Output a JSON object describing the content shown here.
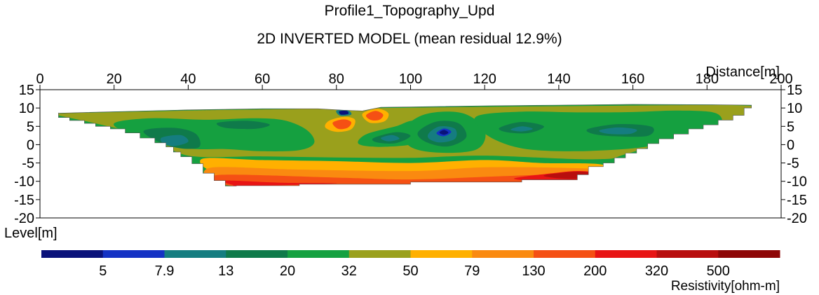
{
  "chart_data": {
    "type": "heatmap",
    "title": "Profile1_Topography_Upd",
    "subtitle": "2D INVERTED MODEL (mean residual 12.9%)",
    "xlabel": "Distance[m]",
    "ylabel": "Level[m]",
    "colorbar_label": "Resistivity[ohm-m]",
    "xlim": [
      0,
      200
    ],
    "ylim": [
      -20,
      15
    ],
    "x_ticks": [
      "0",
      "20",
      "40",
      "60",
      "80",
      "100",
      "120",
      "140",
      "160",
      "180",
      "200"
    ],
    "y_ticks": [
      "15",
      "10",
      "5",
      "0",
      "-5",
      "-10",
      "-15",
      "-20"
    ],
    "colorbar_ticks": [
      "5",
      "7.9",
      "13",
      "20",
      "32",
      "50",
      "79",
      "130",
      "200",
      "320",
      "500"
    ],
    "colorbar_colors": [
      "#0a127a",
      "#1432c4",
      "#157d80",
      "#0f7a4a",
      "#15a040",
      "#9aa01c",
      "#ffb000",
      "#fa8a10",
      "#f55014",
      "#e81414",
      "#b80e0e",
      "#8e0606"
    ],
    "scale": "log",
    "section_top": [
      [
        5,
        8.6
      ],
      [
        20,
        9.0
      ],
      [
        40,
        9.5
      ],
      [
        60,
        9.8
      ],
      [
        75,
        9.8
      ],
      [
        82,
        9.4
      ],
      [
        87,
        9.2
      ],
      [
        92,
        10.2
      ],
      [
        100,
        10.3
      ],
      [
        120,
        10.6
      ],
      [
        140,
        10.8
      ],
      [
        160,
        11.0
      ],
      [
        180,
        10.9
      ],
      [
        192,
        10.8
      ]
    ],
    "section_bottom": [
      [
        5,
        8.0
      ],
      [
        8,
        7.4
      ],
      [
        12,
        6.6
      ],
      [
        15,
        5.8
      ],
      [
        19,
        5.0
      ],
      [
        23,
        4.3
      ],
      [
        27,
        3.2
      ],
      [
        31,
        1.8
      ],
      [
        34,
        0.5
      ],
      [
        36,
        -0.6
      ],
      [
        38,
        -2.0
      ],
      [
        41,
        -3.3
      ],
      [
        44,
        -5.2
      ],
      [
        47,
        -7.8
      ],
      [
        50,
        -9.8
      ],
      [
        53,
        -11.3
      ],
      [
        70,
        -11.2
      ],
      [
        100,
        -10.8
      ],
      [
        130,
        -10.2
      ],
      [
        145,
        -9.6
      ],
      [
        148,
        -8.2
      ],
      [
        152,
        -6.0
      ],
      [
        155,
        -5.0
      ],
      [
        158,
        -3.6
      ],
      [
        161,
        -2.3
      ],
      [
        164,
        -1.1
      ],
      [
        167,
        0.3
      ],
      [
        171,
        1.6
      ],
      [
        175,
        2.9
      ],
      [
        179,
        4.3
      ],
      [
        183,
        5.4
      ],
      [
        187,
        6.7
      ],
      [
        190,
        8.0
      ],
      [
        192,
        10.0
      ]
    ],
    "regions": [
      {
        "class": 5,
        "resistivity": "50-79",
        "pts": [
          [
            5,
            8.5
          ],
          [
            40,
            9.3
          ],
          [
            60,
            9.6
          ],
          [
            140,
            10.5
          ],
          [
            192,
            10.6
          ],
          [
            192,
            8.0
          ],
          [
            160,
            -2.0
          ],
          [
            150,
            -4.0
          ],
          [
            120,
            -3.0
          ],
          [
            100,
            -3.6
          ],
          [
            80,
            -3.5
          ],
          [
            60,
            -3.2
          ],
          [
            40,
            -3.0
          ],
          [
            30,
            2.0
          ],
          [
            15,
            5.8
          ],
          [
            5,
            8.0
          ]
        ]
      },
      {
        "class": 6,
        "resistivity": "79-130",
        "pts": [
          [
            44,
            -3.8
          ],
          [
            60,
            -4.2
          ],
          [
            80,
            -4.5
          ],
          [
            100,
            -5.0
          ],
          [
            120,
            -4.2
          ],
          [
            135,
            -5.0
          ],
          [
            152,
            -5.5
          ],
          [
            150,
            -9.0
          ],
          [
            140,
            -8.0
          ],
          [
            100,
            -8.3
          ],
          [
            60,
            -8.2
          ],
          [
            47,
            -7.5
          ]
        ]
      },
      {
        "class": 7,
        "resistivity": "130-200",
        "pts": [
          [
            46,
            -6.3
          ],
          [
            70,
            -6.8
          ],
          [
            100,
            -7.2
          ],
          [
            120,
            -6.2
          ],
          [
            140,
            -6.3
          ],
          [
            152,
            -7.0
          ],
          [
            148,
            -9.5
          ],
          [
            100,
            -10.0
          ],
          [
            52,
            -10.2
          ]
        ]
      },
      {
        "class": 8,
        "resistivity": "200-320",
        "pts": [
          [
            48,
            -8.3
          ],
          [
            80,
            -9.0
          ],
          [
            100,
            -9.5
          ],
          [
            125,
            -8.6
          ],
          [
            145,
            -8.0
          ],
          [
            147,
            -9.6
          ],
          [
            130,
            -10.4
          ],
          [
            100,
            -11.0
          ],
          [
            53,
            -11.3
          ]
        ]
      },
      {
        "class": 9,
        "resistivity": "320-500",
        "pts": [
          [
            50,
            -9.8
          ],
          [
            65,
            -10.4
          ],
          [
            80,
            -10.6
          ],
          [
            55,
            -11.3
          ],
          [
            52,
            -11.0
          ]
        ]
      },
      {
        "class": 9,
        "resistivity": "320-500",
        "pts": [
          [
            128,
            -9.2
          ],
          [
            140,
            -7.6
          ],
          [
            146,
            -7.2
          ],
          [
            150,
            -7.8
          ],
          [
            146,
            -9.6
          ],
          [
            135,
            -9.9
          ]
        ]
      },
      {
        "class": 10,
        "resistivity": "500+",
        "pts": [
          [
            136,
            -8.4
          ],
          [
            144,
            -7.4
          ],
          [
            149,
            -7.8
          ],
          [
            146,
            -9.2
          ],
          [
            140,
            -9.2
          ]
        ]
      },
      {
        "class": 4,
        "resistivity": "32-50",
        "pts": [
          [
            20,
            5.8
          ],
          [
            30,
            7.2
          ],
          [
            45,
            6.8
          ],
          [
            58,
            7.2
          ],
          [
            66,
            6.6
          ],
          [
            72,
            4.0
          ],
          [
            74,
            0.5
          ],
          [
            70,
            -1.5
          ],
          [
            60,
            -1.8
          ],
          [
            50,
            -1.2
          ],
          [
            42,
            -1.2
          ],
          [
            34,
            -0.2
          ],
          [
            25,
            2.5
          ]
        ]
      },
      {
        "class": 4,
        "resistivity": "32-50",
        "pts": [
          [
            88,
            2.8
          ],
          [
            96,
            5.0
          ],
          [
            101,
            6.5
          ],
          [
            106,
            3.8
          ],
          [
            102,
            0.4
          ],
          [
            92,
            -0.6
          ],
          [
            86,
            0.2
          ]
        ]
      },
      {
        "class": 4,
        "resistivity": "32-50",
        "pts": [
          [
            98,
            4.0
          ],
          [
            104,
            8.3
          ],
          [
            114,
            8.6
          ],
          [
            120,
            4.0
          ],
          [
            118,
            -1.2
          ],
          [
            108,
            -2.2
          ],
          [
            100,
            -0.6
          ]
        ]
      },
      {
        "class": 4,
        "resistivity": "32-50",
        "pts": [
          [
            118,
            7.8
          ],
          [
            130,
            9.0
          ],
          [
            145,
            8.8
          ],
          [
            160,
            8.9
          ],
          [
            172,
            9.3
          ],
          [
            182,
            8.7
          ],
          [
            184,
            5.8
          ],
          [
            180,
            3.2
          ],
          [
            170,
            0.6
          ],
          [
            160,
            -1.0
          ],
          [
            145,
            -1.8
          ],
          [
            132,
            -1.3
          ],
          [
            124,
            0.8
          ],
          [
            119,
            4.0
          ]
        ]
      },
      {
        "class": 3,
        "resistivity": "20-32",
        "pts": [
          [
            28,
            3.8
          ],
          [
            36,
            4.6
          ],
          [
            42,
            3.0
          ],
          [
            43,
            -0.6
          ],
          [
            38,
            -1.0
          ],
          [
            32,
            0.8
          ]
        ]
      },
      {
        "class": 3,
        "resistivity": "20-32",
        "pts": [
          [
            48,
            6.0
          ],
          [
            56,
            6.5
          ],
          [
            62,
            5.5
          ],
          [
            58,
            4.3
          ],
          [
            50,
            4.6
          ]
        ]
      },
      {
        "class": 3,
        "resistivity": "20-32",
        "pts": [
          [
            90,
            1.8
          ],
          [
            96,
            3.4
          ],
          [
            100,
            2.4
          ],
          [
            96,
            0.4
          ],
          [
            91,
            0.6
          ]
        ]
      },
      {
        "class": 3,
        "resistivity": "20-32",
        "pts": [
          [
            102,
            3.4
          ],
          [
            107,
            6.3
          ],
          [
            113,
            5.8
          ],
          [
            115,
            2.0
          ],
          [
            110,
            -0.5
          ],
          [
            104,
            0.8
          ]
        ]
      },
      {
        "class": 3,
        "resistivity": "20-32",
        "pts": [
          [
            124,
            4.6
          ],
          [
            130,
            6.2
          ],
          [
            136,
            5.0
          ],
          [
            132,
            3.2
          ],
          [
            126,
            3.4
          ]
        ]
      },
      {
        "class": 3,
        "resistivity": "20-32",
        "pts": [
          [
            148,
            4.3
          ],
          [
            156,
            5.6
          ],
          [
            165,
            4.9
          ],
          [
            164,
            2.4
          ],
          [
            155,
            2.3
          ],
          [
            149,
            3.0
          ]
        ]
      },
      {
        "class": 2,
        "resistivity": "13-20",
        "pts": [
          [
            33,
            2.0
          ],
          [
            38,
            2.6
          ],
          [
            40,
            0.8
          ],
          [
            36,
            -0.4
          ],
          [
            33,
            0.6
          ]
        ]
      },
      {
        "class": 2,
        "resistivity": "13-20",
        "pts": [
          [
            105,
            3.2
          ],
          [
            108,
            5.0
          ],
          [
            112,
            4.3
          ],
          [
            112,
            1.6
          ],
          [
            108,
            0.6
          ],
          [
            105,
            1.6
          ]
        ]
      },
      {
        "class": 2,
        "resistivity": "13-20",
        "pts": [
          [
            92,
            1.8
          ],
          [
            95,
            2.6
          ],
          [
            97,
            1.6
          ],
          [
            94,
            0.9
          ]
        ]
      },
      {
        "class": 2,
        "resistivity": "13-20",
        "pts": [
          [
            151,
            3.9
          ],
          [
            156,
            4.7
          ],
          [
            161,
            4.1
          ],
          [
            159,
            2.9
          ],
          [
            153,
            3.0
          ]
        ]
      },
      {
        "class": 2,
        "resistivity": "13-20",
        "pts": [
          [
            127,
            4.1
          ],
          [
            130,
            5.0
          ],
          [
            133,
            4.3
          ],
          [
            130,
            3.6
          ]
        ]
      },
      {
        "class": 1,
        "resistivity": "7.9-13",
        "pts": [
          [
            107,
            3.1
          ],
          [
            109,
            4.4
          ],
          [
            111,
            3.5
          ],
          [
            109,
            2.3
          ]
        ]
      },
      {
        "class": 0,
        "resistivity": "5-7.9",
        "pts": [
          [
            107.8,
            3.3
          ],
          [
            109,
            4.0
          ],
          [
            110.2,
            3.3
          ],
          [
            109,
            2.7
          ]
        ]
      },
      {
        "class": 2,
        "resistivity": "13-20",
        "pts": [
          [
            80,
            9.3
          ],
          [
            83,
            9.4
          ],
          [
            84,
            8.2
          ],
          [
            81,
            7.9
          ]
        ]
      },
      {
        "class": 0,
        "resistivity": "5-7.9",
        "pts": [
          [
            80.8,
            9.1
          ],
          [
            82.8,
            9.2
          ],
          [
            83.2,
            8.4
          ],
          [
            81.2,
            8.2
          ]
        ]
      },
      {
        "class": 6,
        "resistivity": "79-130",
        "pts": [
          [
            78,
            6.5
          ],
          [
            82,
            7.6
          ],
          [
            85,
            6.8
          ],
          [
            84,
            4.2
          ],
          [
            80,
            3.5
          ],
          [
            77,
            4.7
          ]
        ]
      },
      {
        "class": 8,
        "resistivity": "200-320",
        "pts": [
          [
            79,
            6.0
          ],
          [
            82,
            6.9
          ],
          [
            84,
            6.1
          ],
          [
            83,
            4.6
          ],
          [
            80.5,
            4.3
          ]
        ]
      },
      {
        "class": 6,
        "resistivity": "79-130",
        "pts": [
          [
            87,
            8.4
          ],
          [
            91,
            9.8
          ],
          [
            94,
            8.6
          ],
          [
            93,
            6.4
          ],
          [
            89,
            6.0
          ]
        ]
      },
      {
        "class": 8,
        "resistivity": "200-320",
        "pts": [
          [
            88,
            8.0
          ],
          [
            90.5,
            9.2
          ],
          [
            92.6,
            8.2
          ],
          [
            91.6,
            6.8
          ],
          [
            89.4,
            6.7
          ]
        ]
      }
    ]
  }
}
